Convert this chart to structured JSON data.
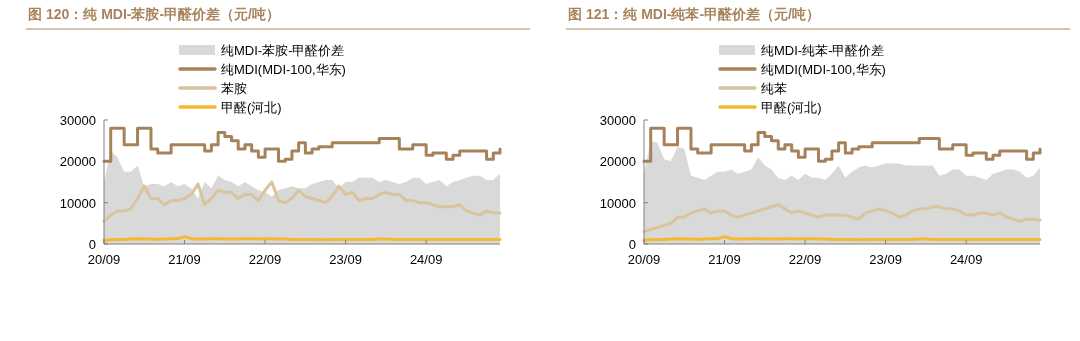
{
  "chart_data": [
    {
      "type": "line",
      "title": "图 120：纯 MDI-苯胺-甲醛价差（元/吨）",
      "legend": "top",
      "categories": [
        "20/09",
        null,
        null,
        null,
        null,
        null,
        null,
        null,
        null,
        null,
        null,
        null,
        "21/09",
        null,
        null,
        null,
        null,
        null,
        null,
        null,
        null,
        null,
        null,
        null,
        "22/09",
        null,
        null,
        null,
        null,
        null,
        null,
        null,
        null,
        null,
        null,
        null,
        "23/09",
        null,
        null,
        null,
        null,
        null,
        null,
        null,
        null,
        null,
        null,
        null,
        "24/09",
        null,
        null,
        null,
        null,
        null,
        null,
        null,
        null,
        null,
        null,
        null
      ],
      "ylim": [
        0,
        30000
      ],
      "yticks": [
        0,
        10000,
        20000,
        30000
      ],
      "series": [
        {
          "name": "纯MDI-苯胺-甲醛价差",
          "type": "area",
          "color": "#d9d9d9",
          "values": [
            15000,
            22500,
            21000,
            17500,
            17500,
            19000,
            14000,
            14500,
            14500,
            14000,
            15000,
            14000,
            14500,
            13500,
            11000,
            15000,
            13500,
            16500,
            15500,
            15000,
            14000,
            15000,
            14000,
            13000,
            12500,
            11500,
            13000,
            13500,
            14000,
            13500,
            13500,
            14500,
            15000,
            15500,
            15500,
            13500,
            15000,
            15000,
            16000,
            16000,
            16000,
            15000,
            15500,
            15000,
            14500,
            15000,
            16000,
            16000,
            14500,
            15000,
            15500,
            14000,
            15000,
            15500,
            16000,
            16500,
            16500,
            15500,
            15500,
            17000
          ]
        },
        {
          "name": "纯MDI(MDI-100,华东)",
          "type": "step",
          "color": "#a6825a",
          "values": [
            20000,
            28000,
            28000,
            24000,
            24000,
            28000,
            28000,
            23000,
            22000,
            22000,
            24000,
            24000,
            24000,
            24000,
            24000,
            22500,
            24000,
            27000,
            26000,
            25000,
            23000,
            24000,
            22500,
            21000,
            23000,
            23000,
            20000,
            20500,
            22500,
            24500,
            22000,
            23000,
            23500,
            23500,
            24500,
            24500,
            24500,
            24500,
            24500,
            24500,
            24500,
            25500,
            25500,
            25500,
            23000,
            23000,
            24000,
            24000,
            21500,
            22000,
            22000,
            20500,
            21500,
            22500,
            22500,
            22500,
            22500,
            20500,
            22000,
            23000
          ]
        },
        {
          "name": "苯胺",
          "type": "line",
          "color": "#dac49b",
          "values": [
            5500,
            7000,
            8000,
            8000,
            8500,
            11000,
            14000,
            11000,
            11000,
            9500,
            10500,
            10500,
            11000,
            12000,
            14500,
            9500,
            11000,
            13000,
            12500,
            12500,
            11000,
            12000,
            12000,
            10500,
            13000,
            15000,
            10500,
            10000,
            11000,
            13000,
            11500,
            11000,
            10500,
            10000,
            11500,
            14000,
            12000,
            12500,
            10500,
            11000,
            11000,
            12000,
            12500,
            12000,
            12000,
            10500,
            10500,
            10000,
            10000,
            9500,
            9000,
            9000,
            9000,
            9500,
            8000,
            7500,
            7000,
            8000,
            7500,
            7500
          ]
        },
        {
          "name": "甲醛(河北)",
          "type": "line",
          "color": "#f5b82e",
          "values": [
            900,
            1000,
            1100,
            1100,
            1200,
            1300,
            1200,
            1200,
            1100,
            1200,
            1300,
            1300,
            1800,
            1300,
            1200,
            1200,
            1300,
            1300,
            1200,
            1200,
            1200,
            1300,
            1300,
            1200,
            1300,
            1300,
            1200,
            1200,
            1100,
            1100,
            1100,
            1100,
            1000,
            1000,
            1100,
            1100,
            1100,
            1100,
            1100,
            1100,
            1100,
            1200,
            1200,
            1100,
            1100,
            1100,
            1100,
            1100,
            1100,
            1100,
            1100,
            1100,
            1100,
            1100,
            1100,
            1100,
            1100,
            1100,
            1100,
            1100
          ]
        }
      ]
    },
    {
      "type": "line",
      "title": "图 121：纯 MDI-纯苯-甲醛价差（元/吨）",
      "legend": "top",
      "categories": [
        "20/09",
        null,
        null,
        null,
        null,
        null,
        null,
        null,
        null,
        null,
        null,
        null,
        "21/09",
        null,
        null,
        null,
        null,
        null,
        null,
        null,
        null,
        null,
        null,
        null,
        "22/09",
        null,
        null,
        null,
        null,
        null,
        null,
        null,
        null,
        null,
        null,
        null,
        "23/09",
        null,
        null,
        null,
        null,
        null,
        null,
        null,
        null,
        null,
        null,
        null,
        "24/09",
        null,
        null,
        null,
        null,
        null,
        null,
        null,
        null,
        null,
        null,
        null
      ],
      "ylim": [
        0,
        30000
      ],
      "yticks": [
        0,
        10000,
        20000,
        30000
      ],
      "series": [
        {
          "name": "纯MDI-纯苯-甲醛价差",
          "type": "area",
          "color": "#d9d9d9",
          "values": [
            17000,
            25000,
            24500,
            20500,
            20000,
            23500,
            23000,
            16500,
            16000,
            15500,
            16500,
            17500,
            17500,
            18000,
            17000,
            17500,
            18000,
            21000,
            19000,
            18000,
            16000,
            15500,
            16500,
            15500,
            17000,
            16000,
            16000,
            15500,
            17000,
            19000,
            16000,
            17500,
            18500,
            19000,
            18500,
            19000,
            19500,
            19500,
            19500,
            19000,
            19000,
            19000,
            19000,
            19000,
            16500,
            17000,
            18000,
            18000,
            16500,
            16500,
            16000,
            15500,
            17000,
            17500,
            18000,
            18000,
            17500,
            16000,
            16500,
            18500
          ]
        },
        {
          "name": "纯MDI(MDI-100,华东)",
          "type": "step",
          "color": "#a6825a",
          "values": [
            20000,
            28000,
            28000,
            24000,
            24000,
            28000,
            28000,
            23000,
            22000,
            22000,
            24000,
            24000,
            24000,
            24000,
            24000,
            22500,
            24000,
            27000,
            26000,
            25000,
            23000,
            24000,
            22500,
            21000,
            23000,
            23000,
            20000,
            20500,
            22500,
            24500,
            22000,
            23000,
            23500,
            23500,
            24500,
            24500,
            24500,
            24500,
            24500,
            24500,
            24500,
            25500,
            25500,
            25500,
            23000,
            23000,
            24000,
            24000,
            21500,
            22000,
            22000,
            20500,
            21500,
            22500,
            22500,
            22500,
            22500,
            20500,
            22000,
            23000
          ]
        },
        {
          "name": "纯苯",
          "type": "line",
          "color": "#dac49b",
          "values": [
            3000,
            3500,
            4000,
            4500,
            5000,
            6500,
            6500,
            7500,
            8000,
            8500,
            7500,
            8000,
            8000,
            7000,
            6500,
            7000,
            7500,
            8000,
            8500,
            9000,
            9500,
            8500,
            7500,
            8000,
            7500,
            7000,
            6500,
            7000,
            7000,
            7000,
            7000,
            6500,
            6000,
            7500,
            8000,
            8500,
            8000,
            7500,
            6500,
            7000,
            8000,
            8500,
            8500,
            9000,
            9000,
            8500,
            8500,
            8000,
            7000,
            7000,
            7500,
            7500,
            7000,
            7500,
            6500,
            6000,
            5500,
            6000,
            6000,
            5800
          ]
        },
        {
          "name": "甲醛(河北)",
          "type": "line",
          "color": "#f5b82e",
          "values": [
            900,
            1000,
            1100,
            1100,
            1200,
            1300,
            1200,
            1200,
            1100,
            1200,
            1300,
            1300,
            1800,
            1300,
            1200,
            1200,
            1300,
            1300,
            1200,
            1200,
            1200,
            1300,
            1300,
            1200,
            1300,
            1300,
            1200,
            1200,
            1100,
            1100,
            1100,
            1100,
            1000,
            1000,
            1100,
            1100,
            1100,
            1100,
            1100,
            1100,
            1100,
            1200,
            1200,
            1100,
            1100,
            1100,
            1100,
            1100,
            1100,
            1100,
            1100,
            1100,
            1100,
            1100,
            1100,
            1100,
            1100,
            1100,
            1100,
            1100
          ]
        }
      ]
    }
  ]
}
